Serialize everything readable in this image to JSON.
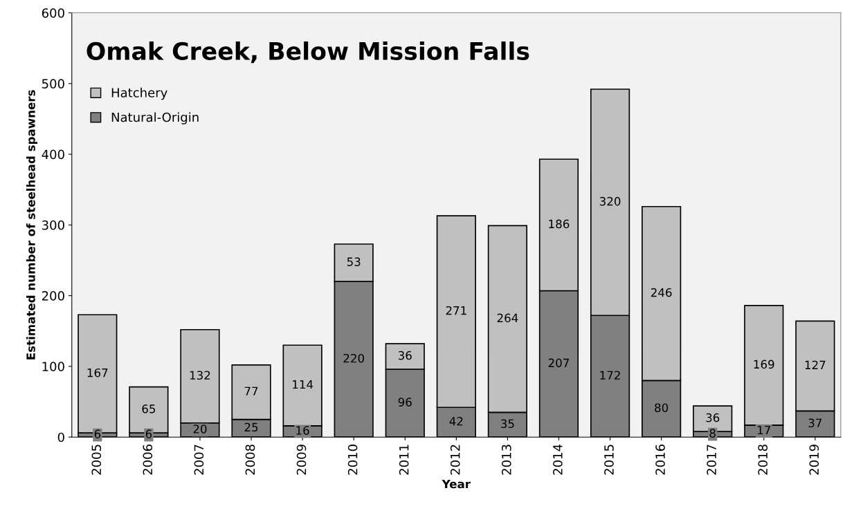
{
  "chart_data": {
    "type": "bar",
    "title": "Omak Creek, Below Mission Falls",
    "xlabel": "Year",
    "ylabel": "Estimated number of steelhead spawners",
    "categories": [
      "2005",
      "2006",
      "2007",
      "2008",
      "2009",
      "2010",
      "2011",
      "2012",
      "2013",
      "2014",
      "2015",
      "2016",
      "2017",
      "2018",
      "2019"
    ],
    "series": [
      {
        "name": "Natural-Origin",
        "color": "#808080",
        "values": [
          6,
          6,
          20,
          25,
          16,
          220,
          96,
          42,
          35,
          207,
          172,
          80,
          8,
          17,
          37
        ]
      },
      {
        "name": "Hatchery",
        "color": "#c0c0c0",
        "values": [
          167,
          65,
          132,
          77,
          114,
          53,
          36,
          271,
          264,
          186,
          320,
          246,
          36,
          169,
          127
        ]
      }
    ],
    "stacked": true,
    "ylim": [
      0,
      600
    ],
    "yticks": [
      0,
      100,
      200,
      300,
      400,
      500,
      600
    ],
    "grid": false,
    "legend": "top left",
    "data_labels": true
  }
}
